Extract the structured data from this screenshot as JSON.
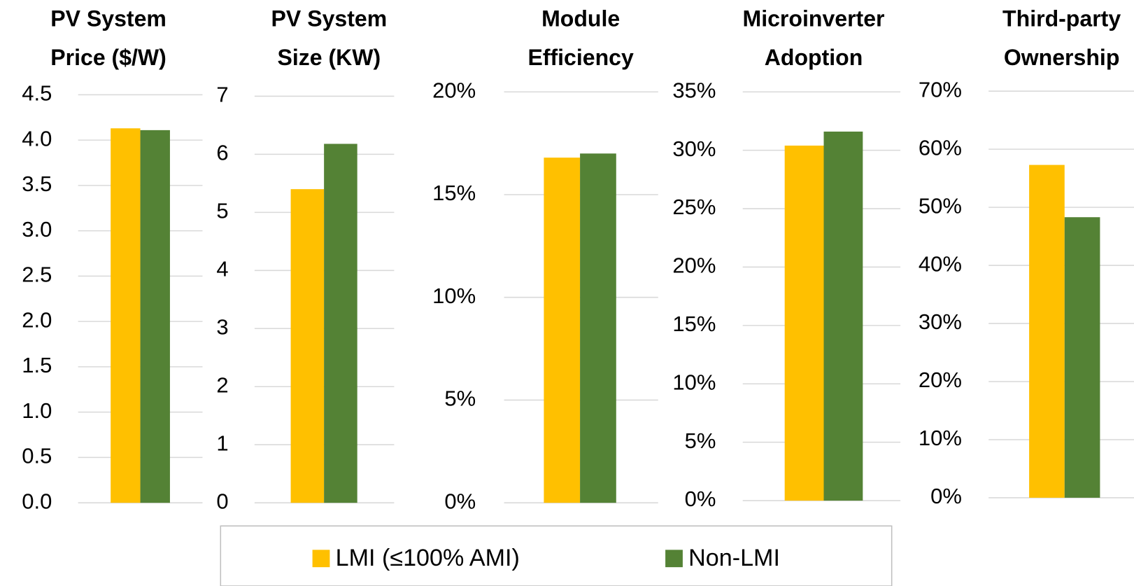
{
  "legend": [
    {
      "name": "LMI (≤100% AMI)",
      "color": "#FFC000"
    },
    {
      "name": "Non-LMI",
      "color": "#548235"
    }
  ],
  "chart_data": [
    {
      "type": "bar",
      "title": [
        "PV System",
        "Price ($/W)"
      ],
      "values": [
        4.13,
        4.11
      ],
      "ylim": [
        0,
        4.5
      ],
      "yticks": [
        {
          "value": 0,
          "label": "0.0"
        },
        0.5,
        {
          "value": 1,
          "label": "1.0"
        },
        1.5,
        {
          "value": 2,
          "label": "2.0"
        },
        2.5,
        {
          "value": 3,
          "label": "3.0"
        },
        3.5,
        {
          "value": 4,
          "label": "4.0"
        },
        4.5
      ],
      "grid": true
    },
    {
      "type": "bar",
      "title": [
        "PV System",
        "Size (KW)"
      ],
      "values": [
        5.4,
        6.18
      ],
      "ylim": [
        0,
        7
      ],
      "yticks": [
        0,
        1,
        2,
        3,
        4,
        5,
        6,
        7
      ],
      "grid": true
    },
    {
      "type": "bar",
      "title": [
        "Module",
        "Efficiency"
      ],
      "values": [
        16.8,
        17.0
      ],
      "ylim": [
        0,
        20
      ],
      "yticks": [
        {
          "value": 0,
          "label": "0%"
        },
        {
          "value": 5,
          "label": "5%"
        },
        {
          "value": 10,
          "label": "10%"
        },
        {
          "value": 15,
          "label": "15%"
        },
        {
          "value": 20,
          "label": "20%"
        }
      ],
      "grid": true
    },
    {
      "type": "bar",
      "title": [
        "Microinverter",
        "Adoption"
      ],
      "values": [
        30.4,
        31.6
      ],
      "ylim": [
        0,
        35
      ],
      "yticks": [
        {
          "value": 0,
          "label": "0%"
        },
        {
          "value": 5,
          "label": "5%"
        },
        {
          "value": 10,
          "label": "10%"
        },
        {
          "value": 15,
          "label": "15%"
        },
        {
          "value": 20,
          "label": "20%"
        },
        {
          "value": 25,
          "label": "25%"
        },
        {
          "value": 30,
          "label": "30%"
        },
        {
          "value": 35,
          "label": "35%"
        }
      ],
      "grid": true
    },
    {
      "type": "bar",
      "title": [
        "Third-party",
        "Ownership"
      ],
      "values": [
        57.3,
        48.3
      ],
      "ylim": [
        0,
        70
      ],
      "yticks": [
        {
          "value": 0,
          "label": "0%"
        },
        {
          "value": 10,
          "label": "10%"
        },
        {
          "value": 20,
          "label": "20%"
        },
        {
          "value": 30,
          "label": "30%"
        },
        {
          "value": 40,
          "label": "40%"
        },
        {
          "value": 50,
          "label": "50%"
        },
        {
          "value": 60,
          "label": "60%"
        },
        {
          "value": 70,
          "label": "70%"
        }
      ],
      "grid": true
    }
  ]
}
